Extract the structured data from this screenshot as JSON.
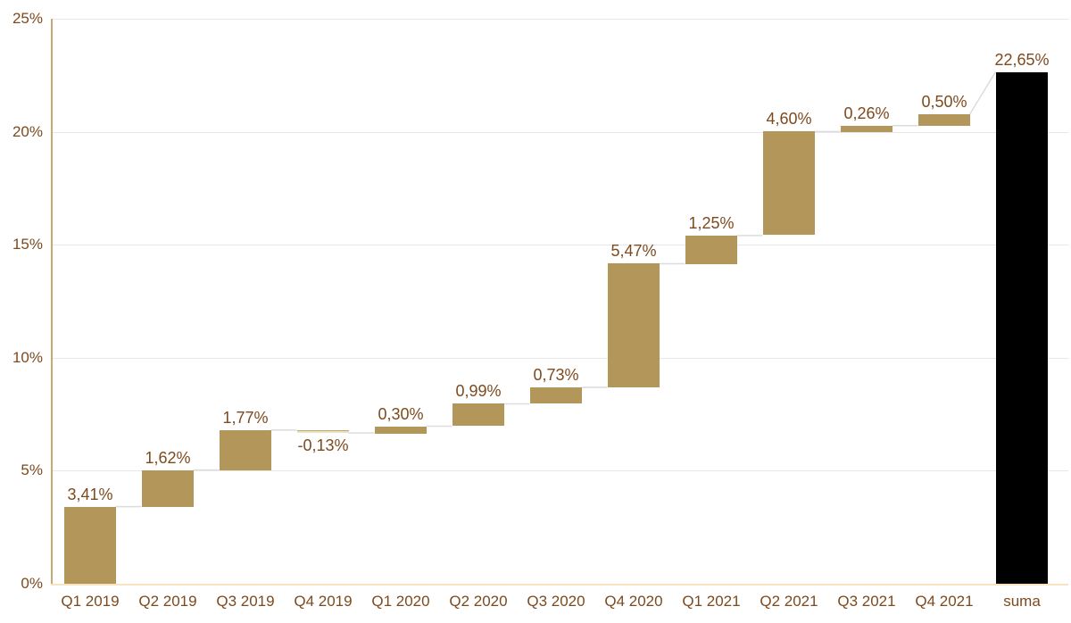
{
  "chart_data": {
    "type": "bar",
    "subtype": "waterfall",
    "title": "",
    "xlabel": "",
    "ylabel": "",
    "categories": [
      "Q1 2019",
      "Q2 2019",
      "Q3 2019",
      "Q4 2019",
      "Q1 2020",
      "Q2 2020",
      "Q3 2020",
      "Q4 2020",
      "Q1 2021",
      "Q2 2021",
      "Q3 2021",
      "Q4 2021"
    ],
    "values": [
      3.41,
      1.62,
      1.77,
      -0.13,
      0.3,
      0.99,
      0.73,
      5.47,
      1.25,
      4.6,
      0.26,
      0.5
    ],
    "data_labels": [
      "3,41%",
      "1,62%",
      "1,77%",
      "-0,13%",
      "0,30%",
      "0,99%",
      "0,73%",
      "5,47%",
      "1,25%",
      "4,60%",
      "0,26%",
      "0,50%"
    ],
    "total": {
      "category": "suma",
      "value": 22.65,
      "data_label": "22,65%"
    },
    "cumulative": [
      3.41,
      5.03,
      6.8,
      6.67,
      6.97,
      7.96,
      8.69,
      14.16,
      15.41,
      20.01,
      20.27,
      20.77
    ],
    "ylim": [
      0,
      25
    ],
    "ytick_labels": [
      "0%",
      "5%",
      "10%",
      "15%",
      "20%",
      "25%"
    ],
    "ytick_values": [
      0,
      5,
      10,
      15,
      20,
      25
    ],
    "grid": "horizontal",
    "legend": "none",
    "colors": {
      "positive_bar": "#b39659",
      "negative_bar_fill": "#eae1c9",
      "negative_bar_edge": "#c0a66b",
      "total_bar": "#000000",
      "label_text": "#7d4a1e",
      "gridline": "#e7e7e7",
      "connector": "#dcdcdc",
      "y_axis_line": "#c6aa74",
      "x_axis_line": "#f8e3c0",
      "background": "#ffffff"
    }
  }
}
